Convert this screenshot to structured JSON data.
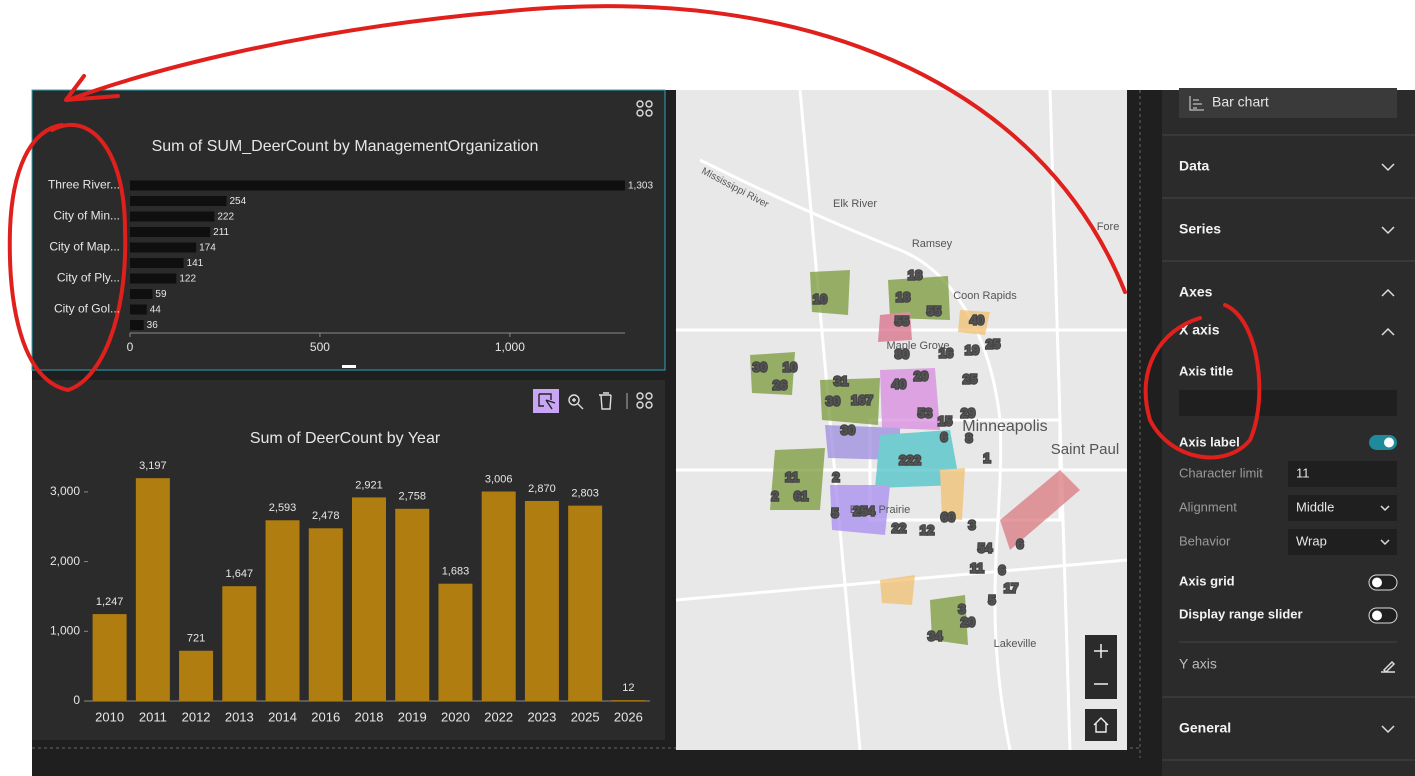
{
  "chart_data": [
    {
      "type": "hbar",
      "title": "Sum of SUM_DeerCount by ManagementOrganization",
      "categories": [
        "Three River...",
        null,
        "City of Min...",
        null,
        "City of Map...",
        null,
        "City of Ply...",
        null,
        "City of Gol...",
        null
      ],
      "values": [
        1303,
        254,
        222,
        211,
        174,
        141,
        122,
        59,
        44,
        36
      ],
      "value_labels": [
        "1,303",
        "254",
        "222",
        "211",
        "174",
        "141",
        "122",
        "59",
        "44",
        "36"
      ],
      "color": "#0f0f0f",
      "xlim": [
        0,
        1303
      ],
      "xticks": [
        0,
        500,
        {
          "value": 1000,
          "label": "1,000"
        }
      ]
    },
    {
      "type": "bar",
      "title": "Sum of DeerCount by Year",
      "categories": [
        "2010",
        "2011",
        "2012",
        "2013",
        "2014",
        "2016",
        "2018",
        "2019",
        "2020",
        "2022",
        "2023",
        "2025",
        "2026"
      ],
      "values": [
        1247,
        3197,
        721,
        1647,
        2593,
        2478,
        2921,
        2758,
        1683,
        3006,
        2870,
        2803,
        12
      ],
      "value_labels": [
        "1,247",
        "3,197",
        "721",
        "1,647",
        "2,593",
        "2,478",
        "2,921",
        "2,758",
        "1,683",
        "3,006",
        "2,870",
        "2,803",
        "12"
      ],
      "color": "#b07d10",
      "ylim": [
        0,
        3300
      ],
      "yticks": [
        0,
        {
          "value": 1000,
          "label": "1,000"
        },
        {
          "value": 2000,
          "label": "2,000"
        },
        {
          "value": 3000,
          "label": "3,000"
        }
      ]
    }
  ],
  "map": {
    "places": [
      "Mississippi River",
      "Elk River",
      "Ramsey",
      "Coon Rapids",
      "Maple Grove",
      "Minneapolis",
      "Saint Paul",
      "Eden Prairie",
      "Lakeville",
      "Fore"
    ],
    "clusters": [
      18,
      18,
      55,
      55,
      40,
      10,
      80,
      16,
      19,
      25,
      29,
      25,
      30,
      10,
      26,
      31,
      30,
      167,
      40,
      53,
      29,
      15,
      30,
      222,
      6,
      8,
      1,
      11,
      2,
      61,
      2,
      5,
      254,
      22,
      12,
      60,
      3,
      54,
      6,
      11,
      6,
      17,
      5,
      3,
      20,
      34
    ]
  },
  "settings": {
    "chart_type": "Bar chart",
    "data": "Data",
    "series": "Series",
    "axes": "Axes",
    "general": "General",
    "x_axis": "X axis",
    "axis_title": "Axis title",
    "axis_label": "Axis label",
    "character_limit": {
      "label": "Character limit",
      "value": 11
    },
    "alignment": {
      "label": "Alignment",
      "value": "Middle"
    },
    "behavior": {
      "label": "Behavior",
      "value": "Wrap"
    },
    "axis_grid": "Axis grid",
    "display_range_slider": "Display range slider",
    "y_axis": "Y axis"
  }
}
